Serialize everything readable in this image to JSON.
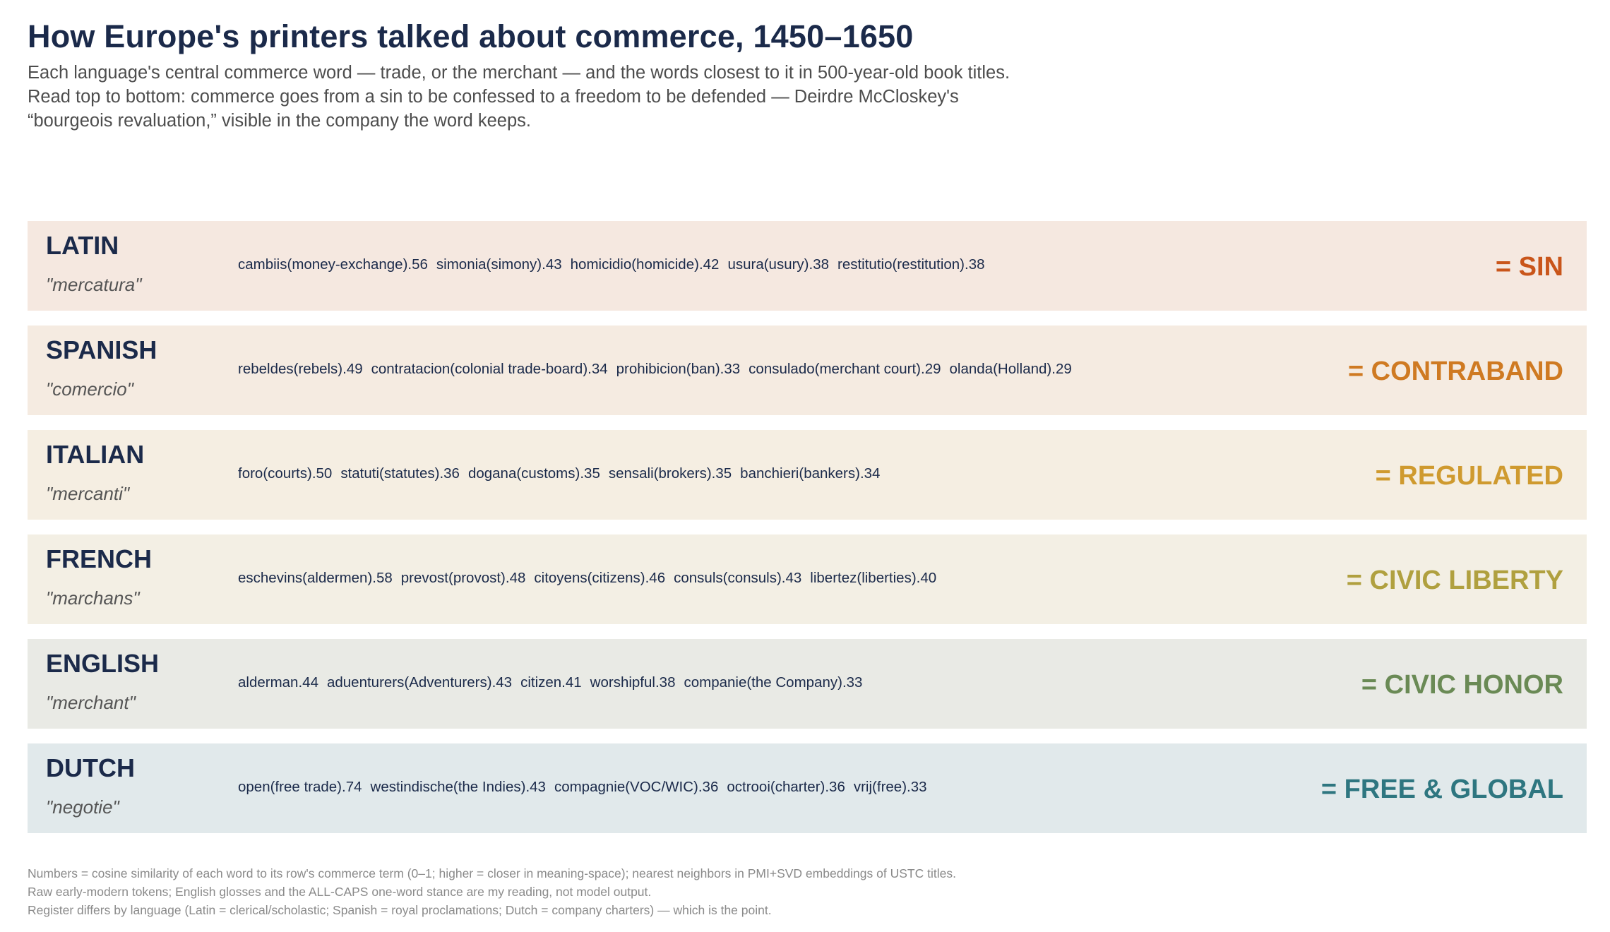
{
  "title": "How Europe's printers talked about commerce, 1450–1650",
  "subtitle": [
    "Each language's central commerce word — trade, or the merchant — and the words closest to it in 500-year-old book titles.",
    "Read top to bottom: commerce goes from a sin to be confessed to a freedom to be defended — Deirdre McCloskey's",
    "“bourgeois revaluation,” visible in the company the word keeps."
  ],
  "chart_data": {
    "type": "table",
    "rows": [
      {
        "language": "LATIN",
        "term": "\"mercatura\"",
        "stance": "= SIN",
        "stance_color": "#c9551a",
        "bg_color": "#f5e8e0",
        "neighbors": [
          {
            "word": "cambiis(money-exchange)",
            "score": ".56"
          },
          {
            "word": "simonia(simony)",
            "score": ".43"
          },
          {
            "word": "homicidio(homicide)",
            "score": ".42"
          },
          {
            "word": "usura(usury)",
            "score": ".38"
          },
          {
            "word": "restitutio(restitution)",
            "score": ".38"
          }
        ]
      },
      {
        "language": "SPANISH",
        "term": "\"comercio\"",
        "stance": "= CONTRABAND",
        "stance_color": "#cf7a22",
        "bg_color": "#f5ebe1",
        "neighbors": [
          {
            "word": "rebeldes(rebels)",
            "score": ".49"
          },
          {
            "word": "contratacion(colonial trade-board)",
            "score": ".34"
          },
          {
            "word": "prohibicion(ban)",
            "score": ".33"
          },
          {
            "word": "consulado(merchant court)",
            "score": ".29"
          },
          {
            "word": "olanda(Holland)",
            "score": ".29"
          }
        ]
      },
      {
        "language": "ITALIAN",
        "term": "\"mercanti\"",
        "stance": "= REGULATED",
        "stance_color": "#cf9a2f",
        "bg_color": "#f5eee2",
        "neighbors": [
          {
            "word": "foro(courts)",
            "score": ".50"
          },
          {
            "word": "statuti(statutes)",
            "score": ".36"
          },
          {
            "word": "dogana(customs)",
            "score": ".35"
          },
          {
            "word": "sensali(brokers)",
            "score": ".35"
          },
          {
            "word": "banchieri(bankers)",
            "score": ".34"
          }
        ]
      },
      {
        "language": "FRENCH",
        "term": "\"marchans\"",
        "stance": "= CIVIC LIBERTY",
        "stance_color": "#b0a03f",
        "bg_color": "#f3efe4",
        "neighbors": [
          {
            "word": "eschevins(aldermen)",
            "score": ".58"
          },
          {
            "word": "prevost(provost)",
            "score": ".48"
          },
          {
            "word": "citoyens(citizens)",
            "score": ".46"
          },
          {
            "word": "consuls(consuls)",
            "score": ".43"
          },
          {
            "word": "libertez(liberties)",
            "score": ".40"
          }
        ]
      },
      {
        "language": "ENGLISH",
        "term": "\"merchant\"",
        "stance": "= CIVIC HONOR",
        "stance_color": "#6a8a55",
        "bg_color": "#e9eae5",
        "neighbors": [
          {
            "word": "alderman",
            "score": ".44"
          },
          {
            "word": "aduenturers(Adventurers)",
            "score": ".43"
          },
          {
            "word": "citizen",
            "score": ".41"
          },
          {
            "word": "worshipful",
            "score": ".38"
          },
          {
            "word": "companie(the Company)",
            "score": ".33"
          }
        ]
      },
      {
        "language": "DUTCH",
        "term": "\"negotie\"",
        "stance": "= FREE & GLOBAL",
        "stance_color": "#2e7680",
        "bg_color": "#e1e9eb",
        "neighbors": [
          {
            "word": "open(free trade)",
            "score": ".74"
          },
          {
            "word": "westindische(the Indies)",
            "score": ".43"
          },
          {
            "word": "compagnie(VOC/WIC)",
            "score": ".36"
          },
          {
            "word": "octrooi(charter)",
            "score": ".36"
          },
          {
            "word": "vrij(free)",
            "score": ".33"
          }
        ]
      }
    ]
  },
  "footnotes": [
    "Numbers = cosine similarity of each word to its row's commerce term (0–1; higher = closer in meaning-space); nearest neighbors in PMI+SVD embeddings of USTC titles.",
    "Raw early-modern tokens; English glosses and the ALL-CAPS one-word stance are my reading, not model output.",
    "Register differs by language (Latin = clerical/scholastic; Spanish = royal proclamations; Dutch = company charters) — which is the point."
  ]
}
